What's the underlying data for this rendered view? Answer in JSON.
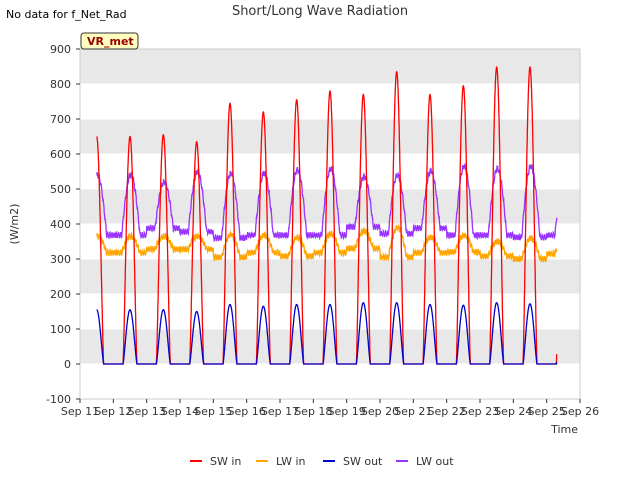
{
  "chart_data": {
    "type": "line",
    "title": "Short/Long Wave Radiation",
    "notice": "No data for f_Net_Rad",
    "site_badge": "VR_met",
    "xlabel": "Time",
    "ylabel": "(W/m2)",
    "ylim": [
      -100,
      900
    ],
    "yticks": [
      -100,
      0,
      100,
      200,
      300,
      400,
      500,
      600,
      700,
      800,
      900
    ],
    "xlim": [
      11,
      26
    ],
    "xticks": [
      {
        "v": 11,
        "label": "Sep 11"
      },
      {
        "v": 12,
        "label": "Sep 12"
      },
      {
        "v": 13,
        "label": "Sep 13"
      },
      {
        "v": 14,
        "label": "Sep 14"
      },
      {
        "v": 15,
        "label": "Sep 15"
      },
      {
        "v": 16,
        "label": "Sep 16"
      },
      {
        "v": 17,
        "label": "Sep 17"
      },
      {
        "v": 18,
        "label": "Sep 18"
      },
      {
        "v": 19,
        "label": "Sep 19"
      },
      {
        "v": 20,
        "label": "Sep 20"
      },
      {
        "v": 21,
        "label": "Sep 21"
      },
      {
        "v": 22,
        "label": "Sep 22"
      },
      {
        "v": 23,
        "label": "Sep 23"
      },
      {
        "v": 24,
        "label": "Sep 24"
      },
      {
        "v": 25,
        "label": "Sep 25"
      },
      {
        "v": 26,
        "label": "Sep 26"
      }
    ],
    "grid": true,
    "band_color": "#e8e8e8",
    "legend_position": "bottom",
    "series": [
      {
        "name": "SW in",
        "color": "#ff0000",
        "daily_peaks": [
          650,
          655,
          635,
          745,
          720,
          755,
          780,
          770,
          835,
          770,
          795,
          848,
          848,
          825
        ]
      },
      {
        "name": "LW in",
        "color": "#ffa500",
        "daily_peaks": [
          365,
          365,
          365,
          370,
          368,
          362,
          372,
          380,
          390,
          362,
          368,
          350,
          360,
          375
        ],
        "daily_lows": [
          318,
          328,
          328,
          305,
          318,
          308,
          318,
          330,
          305,
          318,
          320,
          308,
          300,
          315
        ]
      },
      {
        "name": "SW out",
        "color": "#0000cc",
        "daily_peaks": [
          155,
          155,
          150,
          170,
          165,
          170,
          170,
          175,
          175,
          170,
          168,
          175,
          172,
          170
        ]
      },
      {
        "name": "LW out",
        "color": "#9933ff",
        "daily_peaks": [
          540,
          520,
          550,
          545,
          545,
          555,
          558,
          535,
          540,
          552,
          565,
          558,
          565,
          560
        ],
        "daily_lows": [
          368,
          388,
          378,
          360,
          368,
          368,
          368,
          392,
          372,
          388,
          368,
          368,
          362,
          368
        ]
      }
    ],
    "start_day": 11.5,
    "end_day": 25.3
  }
}
